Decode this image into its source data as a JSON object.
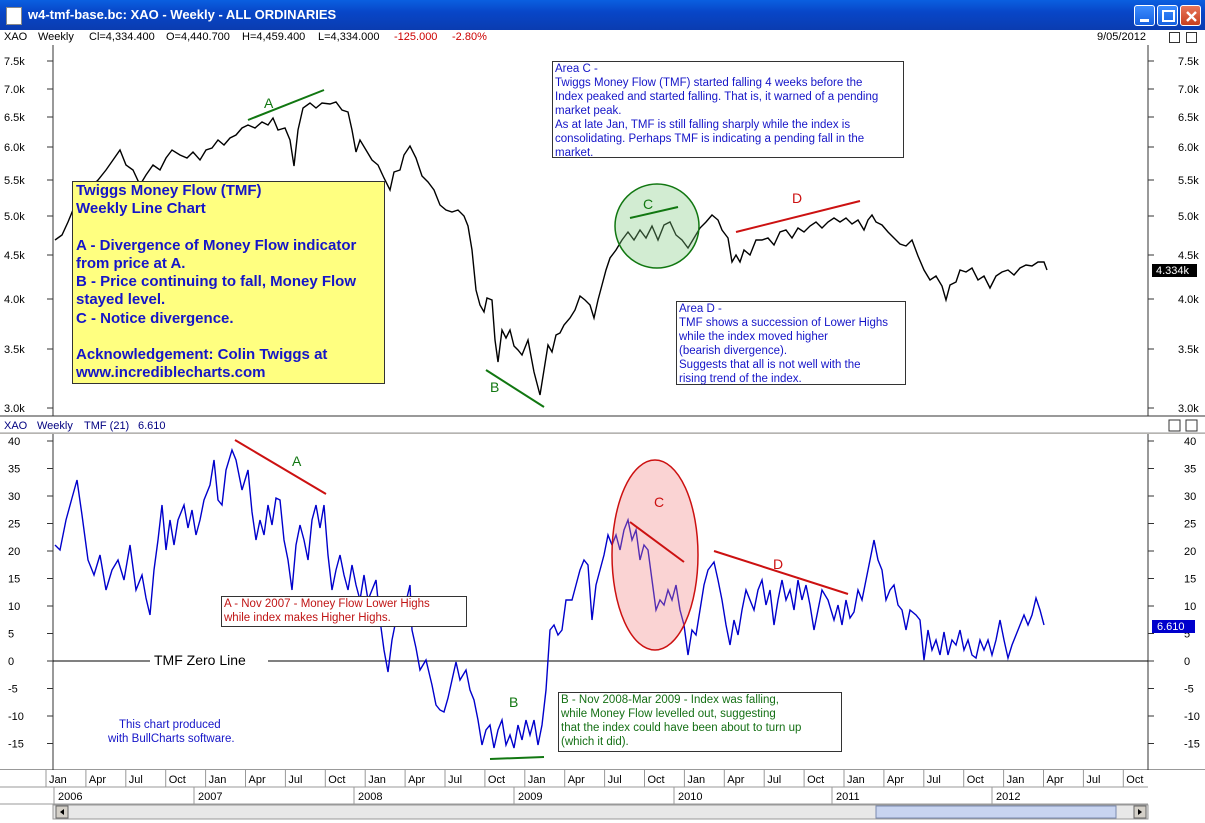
{
  "window": {
    "title": "w4-tmf-base.bc: XAO - Weekly - ALL ORDINARIES"
  },
  "price_header": {
    "symbol": "XAO",
    "interval": "Weekly",
    "close": "Cl=4,334.400",
    "open": "O=4,440.700",
    "high": "H=4,459.400",
    "low": "L=4,334.000",
    "change": "-125.000",
    "change_pct": "-2.80%",
    "date": "9/05/2012"
  },
  "indicator_header": {
    "symbol": "XAO",
    "interval": "Weekly",
    "indicator": "TMF (21)",
    "value": "6.610"
  },
  "price_axis": {
    "ticks": [
      "7.5k",
      "7.0k",
      "6.5k",
      "6.0k",
      "5.5k",
      "5.0k",
      "4.5k",
      "4.0k",
      "3.5k",
      "3.0k"
    ],
    "last_label": "4.334k"
  },
  "tmf_axis": {
    "ticks": [
      "40",
      "35",
      "30",
      "25",
      "20",
      "15",
      "10",
      "5",
      "0",
      "-5",
      "-10",
      "-15"
    ],
    "last_label": "6.610"
  },
  "info_box": {
    "line1": "Twiggs Money Flow (TMF)",
    "line2": "Weekly Line Chart",
    "line3": "A - Divergence of Money Flow indicator",
    "line4": "from price at A.",
    "line5": "B - Price continuing to fall, Money Flow",
    "line6": "stayed level.",
    "line7": "C - Notice divergence.",
    "line8": "Acknowledgement: Colin Twiggs at",
    "line9": "www.incrediblecharts.com"
  },
  "note_area_c": {
    "l1": "Area C -",
    "l2": "Twiggs Money Flow (TMF) started falling 4 weeks before the",
    "l3": "Index peaked and started falling. That is, it warned of a pending",
    "l4": "market peak.",
    "l5": "As at late Jan, TMF is still falling sharply while the index is",
    "l6": "consolidating. Perhaps TMF is indicating a pending fall in the",
    "l7": "market."
  },
  "note_area_d": {
    "l1": "Area D -",
    "l2": "TMF shows a succession of Lower Highs",
    "l3": "while the index moved higher",
    "l4": "(bearish divergence).",
    "l5": "Suggests that all is not well with the",
    "l6": "rising trend of the index."
  },
  "note_a": {
    "l1": "A - Nov 2007 - Money Flow Lower Highs",
    "l2": "while index makes Higher Highs."
  },
  "note_b": {
    "l1": "B - Nov 2008-Mar 2009 - Index was falling,",
    "l2": "while Money Flow levelled out, suggesting",
    "l3": "that the index could have been about to turn up",
    "l4": "(which it did)."
  },
  "zero_line_label": "TMF Zero Line",
  "credit": {
    "l1": "This chart produced",
    "l2": "with BullCharts software."
  },
  "markers": {
    "a": "A",
    "b": "B",
    "c": "C",
    "d": "D"
  },
  "x_axis": {
    "months": [
      "Jan",
      "Apr",
      "Jul",
      "Oct",
      "Jan",
      "Apr",
      "Jul",
      "Oct",
      "Jan",
      "Apr",
      "Jul",
      "Oct",
      "Jan",
      "Apr",
      "Jul",
      "Oct",
      "Jan",
      "Apr",
      "Jul",
      "Oct",
      "Jan",
      "Apr",
      "Jul",
      "Oct",
      "Jan",
      "Apr",
      "Jul",
      "Oct"
    ],
    "years": [
      "2006",
      "2007",
      "2008",
      "2009",
      "2010",
      "2011",
      "2012"
    ]
  },
  "colors": {
    "price_line": "#000000",
    "tmf_line": "#0000cc",
    "accent_red": "#cc1111",
    "accent_green": "#117711",
    "info_text": "#1515c8",
    "box_yellow": "#ffff80"
  }
}
